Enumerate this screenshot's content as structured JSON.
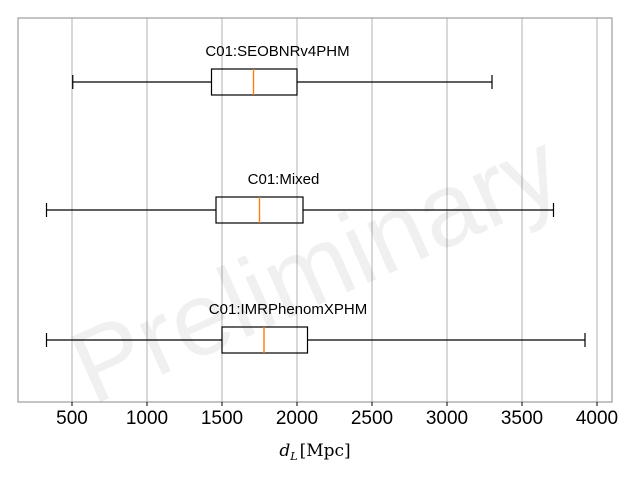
{
  "chart_data": {
    "type": "boxplot",
    "orientation": "horizontal",
    "xlabel": "d_L [Mpc]",
    "xlim": [
      140,
      4100
    ],
    "xticks": [
      500,
      1000,
      1500,
      2000,
      2500,
      3000,
      3500,
      4000
    ],
    "grid": "vertical",
    "legend": "none",
    "watermark": "Preliminary",
    "colors": {
      "box": "#000000",
      "median": "#ff7f0e",
      "grid": "#b0b0b0",
      "frame": "#888888"
    },
    "series": [
      {
        "name": "C01:SEOBNRv4PHM",
        "whisker_low": 505,
        "q1": 1430,
        "median": 1710,
        "q3": 2000,
        "whisker_high": 3300
      },
      {
        "name": "C01:Mixed",
        "whisker_low": 330,
        "q1": 1460,
        "median": 1750,
        "q3": 2040,
        "whisker_high": 3710
      },
      {
        "name": "C01:IMRPhenomXPHM",
        "whisker_low": 330,
        "q1": 1500,
        "median": 1780,
        "q3": 2070,
        "whisker_high": 3920
      }
    ]
  }
}
